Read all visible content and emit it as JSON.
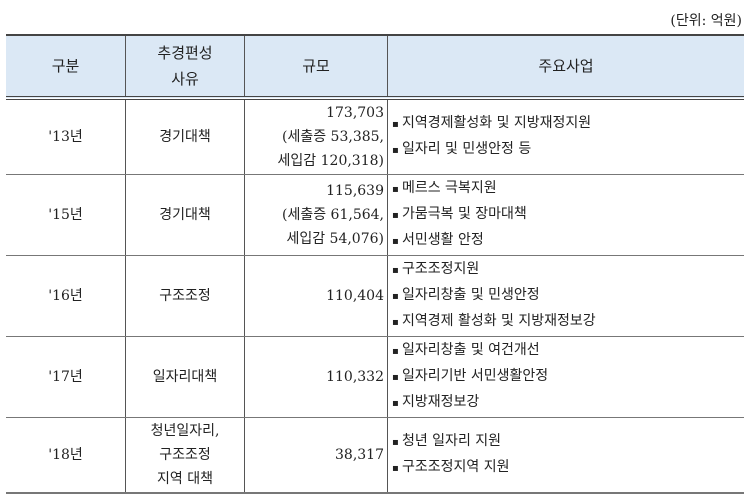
{
  "unit_label": "(단위: 억원)",
  "headers": [
    "구분",
    "추경편성\n사유",
    "규모",
    "주요사업"
  ],
  "rows": [
    {
      "year": "'13년",
      "reason": [
        "경기대책"
      ],
      "scale": [
        "173,703",
        "(세출증 53,385,",
        "세입감 120,318)"
      ],
      "items": [
        "지역경제활성화 및 지방재정지원",
        "일자리 및 민생안정 등"
      ]
    },
    {
      "year": "'15년",
      "reason": [
        "경기대책"
      ],
      "scale": [
        "115,639",
        "(세출증 61,564,",
        "세입감 54,076)"
      ],
      "items": [
        "메르스 극복지원",
        "가뭄극복 및 장마대책",
        "서민생활 안정"
      ]
    },
    {
      "year": "'16년",
      "reason": [
        "구조조정"
      ],
      "scale": [
        "110,404"
      ],
      "items": [
        "구조조정지원",
        "일자리창출 및 민생안정",
        "지역경제 활성화 및 지방재정보강"
      ]
    },
    {
      "year": "'17년",
      "reason": [
        "일자리대책"
      ],
      "scale": [
        "110,332"
      ],
      "items": [
        "일자리창출 및 여건개선",
        "일자리기반 서민생활안정",
        "지방재정보강"
      ]
    },
    {
      "year": "'18년",
      "reason": [
        "청년일자리,",
        "구조조정",
        "지역 대책"
      ],
      "scale": [
        "38,317"
      ],
      "items": [
        "청년 일자리 지원",
        "구조조정지역 지원"
      ]
    }
  ]
}
